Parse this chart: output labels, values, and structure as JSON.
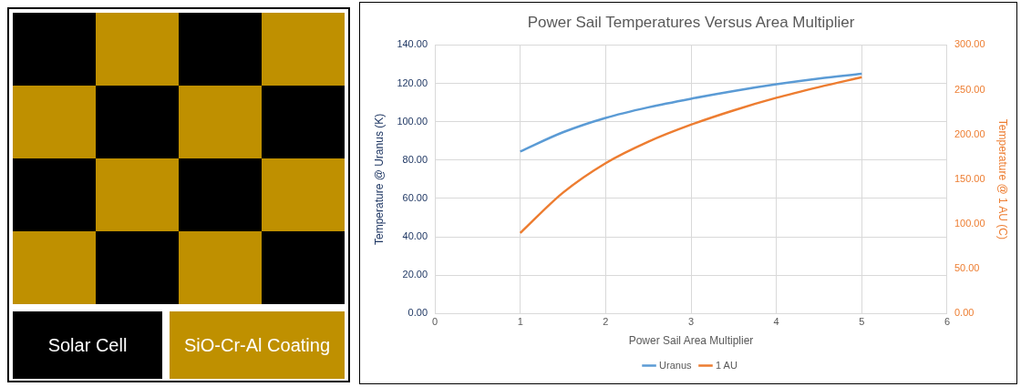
{
  "chart_data": [
    {
      "type": "other",
      "annotations": [
        "Solar Cell",
        "SiO-Cr-Al Coating"
      ]
    },
    {
      "type": "line",
      "title": "Power Sail Temperatures Versus Area Multiplier",
      "xlabel": "Power Sail Area Multiplier",
      "ylabel": "Temperature @ Uranus (K)",
      "y2label": "Temperature @ 1 AU (C)",
      "x": [
        1,
        1.5,
        2,
        2.5,
        3,
        3.5,
        4,
        4.5,
        5
      ],
      "series": [
        {
          "name": "Uranus",
          "color": "#5b9bd5",
          "values": [
            84.5,
            94.5,
            102,
            107.5,
            112,
            116,
            119.5,
            122.5,
            125
          ]
        },
        {
          "name": "1 AU",
          "color": "#ed7d31",
          "axis": "y2",
          "values": [
            90,
            135,
            168,
            192,
            211,
            227,
            241,
            253,
            264
          ]
        }
      ],
      "xlim": [
        0,
        6
      ],
      "xticks": [
        0,
        1,
        2,
        3,
        4,
        5,
        6
      ],
      "ylim": [
        0,
        140
      ],
      "yticks": [
        {
          "value": 0,
          "label": "0.00"
        },
        {
          "value": 20,
          "label": "20.00"
        },
        {
          "value": 40,
          "label": "40.00"
        },
        {
          "value": 60,
          "label": "60.00"
        },
        {
          "value": 80,
          "label": "80.00"
        },
        {
          "value": 100,
          "label": "100.00"
        },
        {
          "value": 120,
          "label": "120.00"
        },
        {
          "value": 140,
          "label": "140.00"
        }
      ],
      "y2lim": [
        0,
        300
      ],
      "y2ticks": [
        {
          "value": 0,
          "label": "0.00"
        },
        {
          "value": 50,
          "label": "50.00"
        },
        {
          "value": 100,
          "label": "100.00"
        },
        {
          "value": 150,
          "label": "150.00"
        },
        {
          "value": 200,
          "label": "200.00"
        },
        {
          "value": 250,
          "label": "250.00"
        },
        {
          "value": 300,
          "label": "300.00"
        }
      ],
      "grid": true,
      "legend": "bottom",
      "marker": "none",
      "line_style": "solid"
    }
  ]
}
